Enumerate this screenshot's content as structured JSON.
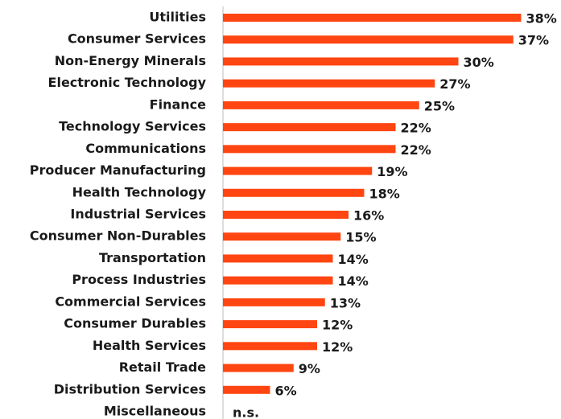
{
  "chart_data": {
    "type": "barh",
    "categories": [
      "Utilities",
      "Consumer Services",
      "Non-Energy Minerals",
      "Electronic Technology",
      "Finance",
      "Technology Services",
      "Communications",
      "Producer Manufacturing",
      "Health Technology",
      "Industrial Services",
      "Consumer Non-Durables",
      "Transportation",
      "Process Industries",
      "Commercial Services",
      "Consumer Durables",
      "Health Services",
      "Retail Trade",
      "Distribution Services",
      "Miscellaneous"
    ],
    "values": [
      38,
      37,
      30,
      27,
      25,
      22,
      22,
      19,
      18,
      16,
      15,
      14,
      14,
      13,
      12,
      12,
      9,
      6,
      null
    ],
    "value_labels": [
      "38%",
      "37%",
      "30%",
      "27%",
      "25%",
      "22%",
      "22%",
      "19%",
      "18%",
      "16%",
      "15%",
      "14%",
      "14%",
      "13%",
      "12%",
      "12%",
      "9%",
      "6%",
      "n.s."
    ],
    "color": "#ff4511",
    "xlim": [
      0,
      40
    ]
  }
}
